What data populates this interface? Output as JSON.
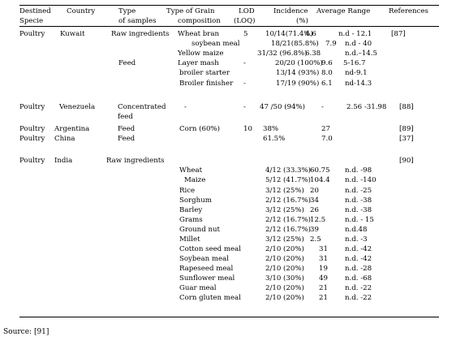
{
  "header": {
    "destined": "Destined",
    "specie": "Specie",
    "country": "Country",
    "type": "Type",
    "of_samples": "of samples",
    "grain_type": "Type of  Grain",
    "composition": "composition",
    "lod": "LOD",
    "loq": "(LOQ)",
    "incidence": "Incidence",
    "percent": "(%)",
    "average_range": "Average Range",
    "references": "References"
  },
  "groups": [
    {
      "species": "Poultry",
      "country": "Kuwait",
      "rows": [
        {
          "sample": "Raw ingredients",
          "grain": "Wheat bran",
          "lod": "5",
          "incidence": "10/14(71.4%)",
          "average": "4.6",
          "range": "n.d - 12.1",
          "ref": "[87]"
        },
        {
          "sample": "",
          "grain": "soybean meal",
          "lod": "",
          "incidence": "18/21(85.8%)",
          "average": "7.9",
          "range": "n.d - 40",
          "ref": ""
        },
        {
          "sample": "",
          "grain": "Yellow maize",
          "lod": "",
          "incidence": "31/32 (96.8%)",
          "average": "6.38",
          "range": "n.d.–14.5",
          "ref": ""
        },
        {
          "sample": "Feed",
          "grain": "Layer mash",
          "lod": "-",
          "incidence": "20/20 (100%)",
          "average": "9.6",
          "range": "5-16.7",
          "ref": ""
        },
        {
          "sample": "",
          "grain": "broiler starter",
          "lod": "",
          "incidence": "13/14 (93%)",
          "average": "8.0",
          "range": "nd-9.1",
          "ref": ""
        },
        {
          "sample": "",
          "grain": "Broiler finisher",
          "lod": "-",
          "incidence": "17/19 (90%)",
          "average": "6.1",
          "range": "nd-14.3",
          "ref": ""
        }
      ]
    },
    {
      "species": "Poultry",
      "country": "Venezuela",
      "rows": [
        {
          "sample": "Concentrated",
          "sample2": "feed",
          "grain": "-",
          "lod": "-",
          "incidence": "47 /50 (94%)",
          "average": "-",
          "range": "2.56  -31.98",
          "ref": "[88]"
        }
      ]
    },
    {
      "species": "Poultry",
      "country": "Argentina",
      "rows": [
        {
          "sample": "Feed",
          "grain": "Corn (60%)",
          "lod": "10",
          "incidence": "38%",
          "average": "27",
          "range": "",
          "ref": "[89]"
        }
      ]
    },
    {
      "species": "Poultry",
      "country": "China",
      "rows": [
        {
          "sample": "Feed",
          "grain": "",
          "lod": "",
          "incidence": "61.5%",
          "average": "7.0",
          "range": "",
          "ref": "[37]"
        }
      ]
    },
    {
      "species": "Poultry",
      "country": "India",
      "rows": [
        {
          "sample": "Raw ingredients",
          "grain": "Wheat",
          "incidence": "4/12 (33.3%)",
          "average": "60.75",
          "range": "n.d.  -98",
          "ref": "[90]"
        },
        {
          "grain": "Maize",
          "incidence": "5/12 (41.7%)",
          "average": "104.4",
          "range": "n.d.  -140"
        },
        {
          "grain": "Rice",
          "incidence": "3/12 (25%)",
          "average": "20",
          "range": "n.d.  -25"
        },
        {
          "grain": "Sorghum",
          "incidence": "2/12 (16.7%)",
          "average": "34",
          "range": "n.d.  -38"
        },
        {
          "grain": "Barley",
          "incidence": "3/12 (25%)",
          "average": "26",
          "range": "n.d.  -38"
        },
        {
          "grain": "Grams",
          "incidence": "2/12 (16.7%)",
          "average": "12.5",
          "range": "n.d. - 15"
        },
        {
          "grain": "Ground nut",
          "incidence": "2/12 (16.7%)",
          "average": "39",
          "range": "n.d.48"
        },
        {
          "grain": "Millet",
          "incidence": "3/12 (25%)",
          "average": "2.5",
          "range": "n.d.  -3"
        },
        {
          "grain": "Cotton seed meal",
          "incidence": "2/10 (20%)",
          "average": "31",
          "range": "n.d.  -42"
        },
        {
          "grain": "Soybean  meal",
          "incidence": "2/10 (20%)",
          "average": "31",
          "range": "n.d.  -42"
        },
        {
          "grain": "Rapeseed  meal",
          "incidence": "2/10 (20%)",
          "average": "19",
          "range": "n.d.  -28"
        },
        {
          "grain": "Sunflower meal",
          "incidence": "3/10 (30%)",
          "average": "49",
          "range": "n.d.  -68"
        },
        {
          "grain": "Guar  meal",
          "incidence": "2/10 (20%)",
          "average": "21",
          "range": "n.d.  -22"
        },
        {
          "grain": "Corn gluten meal",
          "incidence": "2/10 (20%)",
          "average": "21",
          "range": "n.d.  -22"
        }
      ]
    }
  ],
  "source": "Source: [91]"
}
